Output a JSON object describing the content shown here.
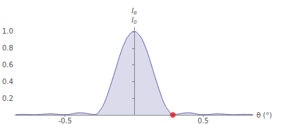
{
  "chart_data": {
    "type": "line",
    "xlabel": "θ (°)",
    "ylabel": {
      "numerator": "Iθ",
      "denominator": "I0"
    },
    "xlim": [
      -0.86,
      0.86
    ],
    "ylim": [
      0,
      1.05
    ],
    "xticks": [
      -0.5,
      0.5
    ],
    "yticks": [
      0.2,
      0.4,
      0.6,
      {
        "value": 0.8,
        "label": "0.8"
      },
      {
        "value": 1,
        "label": "1.0"
      }
    ],
    "grid": false,
    "series": [
      {
        "type": "area",
        "color": "#5c5ca8",
        "x": [
          -0.86,
          -0.8,
          -0.76,
          -0.72,
          -0.68,
          -0.64,
          -0.6,
          -0.56,
          -0.52,
          -0.48,
          -0.44,
          -0.4,
          -0.36,
          -0.32,
          -0.28,
          -0.25,
          -0.22,
          -0.19,
          -0.16,
          -0.13,
          -0.1,
          -0.07,
          -0.04,
          0,
          0.04,
          0.07,
          0.1,
          0.13,
          0.16,
          0.19,
          0.22,
          0.25,
          0.28,
          0.32,
          0.36,
          0.4,
          0.44,
          0.48,
          0.52,
          0.56,
          0.6,
          0.64,
          0.68,
          0.72,
          0.76,
          0.8,
          0.86
        ],
        "values": [
          0.004,
          0.006,
          0.004,
          0.002,
          0.005,
          0.01,
          0.012,
          0.008,
          0.003,
          0.004,
          0.015,
          0.025,
          0.022,
          0.01,
          0.005,
          0.05,
          0.13,
          0.26,
          0.41,
          0.57,
          0.73,
          0.86,
          0.95,
          1.0,
          0.95,
          0.86,
          0.73,
          0.57,
          0.41,
          0.26,
          0.13,
          0.05,
          0.005,
          0.01,
          0.022,
          0.025,
          0.015,
          0.004,
          0.003,
          0.008,
          0.012,
          0.01,
          0.005,
          0.002,
          0.004,
          0.006,
          0.004
        ]
      },
      {
        "type": "scatter",
        "color": "#e0191f",
        "marker": "circle",
        "x": [
          0.28
        ],
        "values": [
          0
        ]
      }
    ]
  }
}
